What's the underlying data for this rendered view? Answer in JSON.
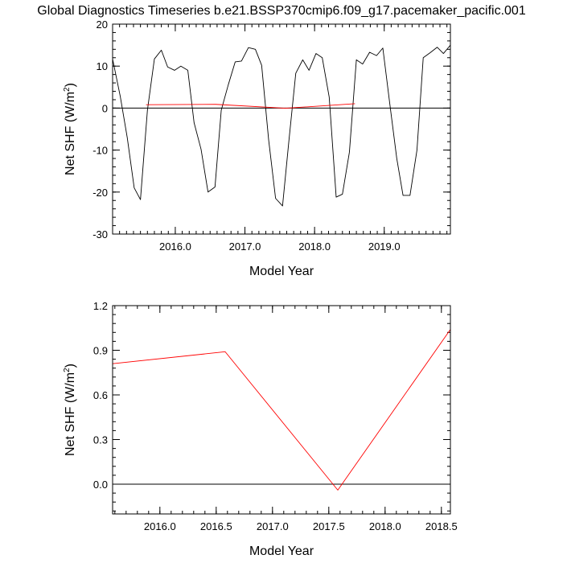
{
  "title": "Global Diagnostics Timeseries b.e21.BSSP370cmip6.f09_g17.pacemaker_pacific.001",
  "colors": {
    "monthly": "#000000",
    "annual": "#ff0000",
    "zero": "#000000"
  },
  "chart_data": [
    {
      "type": "line",
      "xlabel": "Model Year",
      "ylabel_main": "Net SHF (W/m",
      "ylabel_sup": "2",
      "ylabel_close": ")",
      "xlim": [
        2015.1,
        2019.95
      ],
      "ylim": [
        -30,
        20
      ],
      "x_ticks": [
        2016,
        2017,
        2018,
        2019
      ],
      "x_tick_labels": [
        "2016.0",
        "2017.0",
        "2018.0",
        "2019.0"
      ],
      "y_ticks": [
        -30,
        -20,
        -10,
        0,
        10,
        20
      ],
      "y_tick_labels": [
        "-30",
        "-20",
        "-10",
        "0",
        "10",
        "20"
      ],
      "series": [
        {
          "color": "#000000",
          "x": [
            2015.1,
            2015.21,
            2015.31,
            2015.41,
            2015.5,
            2015.6,
            2015.7,
            2015.8,
            2015.89,
            2015.99,
            2016.08,
            2016.18,
            2016.27,
            2016.37,
            2016.47,
            2016.57,
            2016.66,
            2016.76,
            2016.86,
            2016.95,
            2017.05,
            2017.15,
            2017.24,
            2017.34,
            2017.44,
            2017.54,
            2017.63,
            2017.73,
            2017.83,
            2017.92,
            2018.02,
            2018.11,
            2018.21,
            2018.31,
            2018.4,
            2018.5,
            2018.6,
            2018.69,
            2018.79,
            2018.89,
            2018.98,
            2019.08,
            2019.18,
            2019.27,
            2019.37,
            2019.47,
            2019.56,
            2019.66,
            2019.76,
            2019.85,
            2019.95
          ],
          "y": [
            11.7,
            2.8,
            -7.0,
            -19.0,
            -21.8,
            -0.5,
            11.7,
            13.8,
            9.8,
            9.0,
            10.0,
            9.0,
            -3.5,
            -9.8,
            -20.0,
            -18.8,
            -0.5,
            5.5,
            11.0,
            11.2,
            14.4,
            14.0,
            10.2,
            -7.5,
            -21.5,
            -23.3,
            -8.0,
            8.3,
            11.5,
            9.0,
            13.0,
            12.0,
            2.6,
            -21.2,
            -20.5,
            -10.5,
            11.5,
            10.5,
            13.3,
            12.5,
            14.3,
            1.0,
            -12.0,
            -20.8,
            -20.8,
            -10.0,
            12.0,
            13.2,
            14.5,
            13.0,
            15.0
          ]
        },
        {
          "color": "#ff0000",
          "x": [
            2015.58,
            2016.58,
            2017.58,
            2018.58
          ],
          "y": [
            0.81,
            0.89,
            -0.04,
            1.04
          ]
        }
      ]
    },
    {
      "type": "line",
      "xlabel": "Model Year",
      "ylabel_main": "Net SHF (W/m",
      "ylabel_sup": "2",
      "ylabel_close": ")",
      "xlim": [
        2015.58,
        2018.58
      ],
      "ylim": [
        -0.2,
        1.2
      ],
      "x_ticks": [
        2016,
        2016.5,
        2017,
        2017.5,
        2018,
        2018.5
      ],
      "x_tick_labels": [
        "2016.0",
        "2016.5",
        "2017.0",
        "2017.5",
        "2018.0",
        "2018.5"
      ],
      "y_ticks": [
        0,
        0.3,
        0.6,
        0.9,
        1.2
      ],
      "y_tick_labels": [
        "0.0",
        "0.3",
        "0.6",
        "0.9",
        "1.2"
      ],
      "series": [
        {
          "color": "#ff0000",
          "x": [
            2015.58,
            2016.58,
            2017.58,
            2018.58
          ],
          "y": [
            0.81,
            0.89,
            -0.04,
            1.04
          ]
        }
      ]
    }
  ]
}
